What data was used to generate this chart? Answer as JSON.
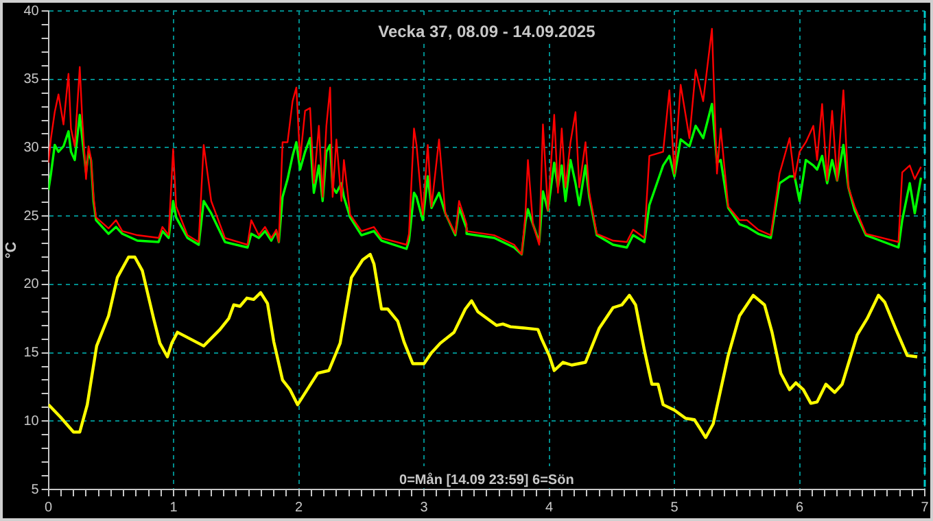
{
  "chart_data": {
    "type": "line",
    "title": "Vecka 37, 08.09 - 14.09.2025",
    "ylabel": "°C",
    "annotations": [
      "0=Mån [14.09 23:59] 6=Sön"
    ],
    "xlim": [
      0,
      7
    ],
    "ylim": [
      5,
      40
    ],
    "xticks": [
      0,
      {
        "value": 0.1,
        "label": null
      },
      {
        "value": 0.2,
        "label": null
      },
      {
        "value": 0.3,
        "label": null
      },
      {
        "value": 0.4,
        "label": null
      },
      {
        "value": 0.5,
        "label": null
      },
      {
        "value": 0.6,
        "label": null
      },
      {
        "value": 0.7,
        "label": null
      },
      {
        "value": 0.8,
        "label": null
      },
      {
        "value": 0.9,
        "label": null
      },
      1,
      {
        "value": 1.1,
        "label": null
      },
      {
        "value": 1.2,
        "label": null
      },
      {
        "value": 1.3,
        "label": null
      },
      {
        "value": 1.4,
        "label": null
      },
      {
        "value": 1.5,
        "label": null
      },
      {
        "value": 1.6,
        "label": null
      },
      {
        "value": 1.7,
        "label": null
      },
      {
        "value": 1.8,
        "label": null
      },
      {
        "value": 1.9,
        "label": null
      },
      2,
      {
        "value": 2.1,
        "label": null
      },
      {
        "value": 2.2,
        "label": null
      },
      {
        "value": 2.3,
        "label": null
      },
      {
        "value": 2.4,
        "label": null
      },
      {
        "value": 2.5,
        "label": null
      },
      {
        "value": 2.6,
        "label": null
      },
      {
        "value": 2.7,
        "label": null
      },
      {
        "value": 2.8,
        "label": null
      },
      {
        "value": 2.9,
        "label": null
      },
      3,
      {
        "value": 3.1,
        "label": null
      },
      {
        "value": 3.2,
        "label": null
      },
      {
        "value": 3.3,
        "label": null
      },
      {
        "value": 3.4,
        "label": null
      },
      {
        "value": 3.5,
        "label": null
      },
      {
        "value": 3.6,
        "label": null
      },
      {
        "value": 3.7,
        "label": null
      },
      {
        "value": 3.8,
        "label": null
      },
      {
        "value": 3.9,
        "label": null
      },
      4,
      {
        "value": 4.1,
        "label": null
      },
      {
        "value": 4.2,
        "label": null
      },
      {
        "value": 4.3,
        "label": null
      },
      {
        "value": 4.4,
        "label": null
      },
      {
        "value": 4.5,
        "label": null
      },
      {
        "value": 4.6,
        "label": null
      },
      {
        "value": 4.7,
        "label": null
      },
      {
        "value": 4.8,
        "label": null
      },
      {
        "value": 4.9,
        "label": null
      },
      5,
      {
        "value": 5.1,
        "label": null
      },
      {
        "value": 5.2,
        "label": null
      },
      {
        "value": 5.3,
        "label": null
      },
      {
        "value": 5.4,
        "label": null
      },
      {
        "value": 5.5,
        "label": null
      },
      {
        "value": 5.6,
        "label": null
      },
      {
        "value": 5.7,
        "label": null
      },
      {
        "value": 5.8,
        "label": null
      },
      {
        "value": 5.9,
        "label": null
      },
      6,
      {
        "value": 6.1,
        "label": null
      },
      {
        "value": 6.2,
        "label": null
      },
      {
        "value": 6.3,
        "label": null
      },
      {
        "value": 6.4,
        "label": null
      },
      {
        "value": 6.5,
        "label": null
      },
      {
        "value": 6.6,
        "label": null
      },
      {
        "value": 6.7,
        "label": null
      },
      {
        "value": 6.8,
        "label": null
      },
      {
        "value": 6.9,
        "label": null
      },
      7
    ],
    "yticks": [
      5,
      {
        "value": 6,
        "label": null
      },
      {
        "value": 7,
        "label": null
      },
      {
        "value": 8,
        "label": null
      },
      {
        "value": 9,
        "label": null
      },
      10,
      {
        "value": 11,
        "label": null
      },
      {
        "value": 12,
        "label": null
      },
      {
        "value": 13,
        "label": null
      },
      {
        "value": 14,
        "label": null
      },
      15,
      {
        "value": 16,
        "label": null
      },
      {
        "value": 17,
        "label": null
      },
      {
        "value": 18,
        "label": null
      },
      {
        "value": 19,
        "label": null
      },
      20,
      {
        "value": 21,
        "label": null
      },
      {
        "value": 22,
        "label": null
      },
      {
        "value": 23,
        "label": null
      },
      {
        "value": 24,
        "label": null
      },
      25,
      {
        "value": 26,
        "label": null
      },
      {
        "value": 27,
        "label": null
      },
      {
        "value": 28,
        "label": null
      },
      {
        "value": 29,
        "label": null
      },
      30,
      {
        "value": 31,
        "label": null
      },
      {
        "value": 32,
        "label": null
      },
      {
        "value": 33,
        "label": null
      },
      {
        "value": 34,
        "label": null
      },
      35,
      {
        "value": 36,
        "label": null
      },
      {
        "value": 37,
        "label": null
      },
      {
        "value": 38,
        "label": null
      },
      {
        "value": 39,
        "label": null
      },
      40
    ],
    "grid": true,
    "legend": false,
    "marker": "none",
    "line_style": "solid",
    "ref_lines": [
      {
        "axis": "x",
        "value": 7,
        "color": "#00c8c8",
        "line_style": "dashed"
      }
    ],
    "series": [
      {
        "color": "#ff0000",
        "x": [
          0,
          0.02,
          0.05,
          0.08,
          0.12,
          0.16,
          0.18,
          0.21,
          0.25,
          0.27,
          0.3,
          0.32,
          0.34,
          0.36,
          0.38,
          0.48,
          0.54,
          0.59,
          0.71,
          0.88,
          0.91,
          0.96,
          0.996,
          1.02,
          1.11,
          1.2,
          1.24,
          1.3,
          1.41,
          1.59,
          1.62,
          1.68,
          1.73,
          1.78,
          1.82,
          1.84,
          1.87,
          1.91,
          1.95,
          1.98,
          2.01,
          2.05,
          2.09,
          2.12,
          2.16,
          2.19,
          2.22,
          2.25,
          2.27,
          2.3,
          2.34,
          2.36,
          2.41,
          2.5,
          2.6,
          2.66,
          2.86,
          2.88,
          2.92,
          2.94,
          2.99,
          3.03,
          3.06,
          3.12,
          3.17,
          3.25,
          3.28,
          3.34,
          3.34,
          3.56,
          3.72,
          3.78,
          3.81,
          3.83,
          3.87,
          3.92,
          3.95,
          3.99,
          4.04,
          4.07,
          4.1,
          4.13,
          4.17,
          4.21,
          4.24,
          4.29,
          4.32,
          4.38,
          4.51,
          4.62,
          4.67,
          4.76,
          4.8,
          4.91,
          4.96,
          5.0,
          5.05,
          5.12,
          5.17,
          5.23,
          5.3,
          5.34,
          5.37,
          5.43,
          5.52,
          5.58,
          5.67,
          5.77,
          5.84,
          5.92,
          5.96,
          6.0,
          6.05,
          6.11,
          6.14,
          6.18,
          6.22,
          6.26,
          6.3,
          6.35,
          6.39,
          6.44,
          6.53,
          6.79,
          6.82,
          6.88,
          6.92,
          6.97
        ],
        "values": [
          28.9,
          30.7,
          32.6,
          33.9,
          31.7,
          35.4,
          31.4,
          30.1,
          35.9,
          32.1,
          27.7,
          30.1,
          29.2,
          26.4,
          24.9,
          24.1,
          24.7,
          23.9,
          23.6,
          23.4,
          24.2,
          23.6,
          29.9,
          25.7,
          23.6,
          23.1,
          30.2,
          26.1,
          23.4,
          22.9,
          24.7,
          23.6,
          24.2,
          23.4,
          24.0,
          23.1,
          30.4,
          30.4,
          33.4,
          34.4,
          29.1,
          32.7,
          32.9,
          27.4,
          31.6,
          26.4,
          31.6,
          34.4,
          26.4,
          30.6,
          26.1,
          29.1,
          25.1,
          23.9,
          24.2,
          23.4,
          22.9,
          23.7,
          31.4,
          30.2,
          25.1,
          30.2,
          25.7,
          30.6,
          25.2,
          23.7,
          26.1,
          24.4,
          23.9,
          23.6,
          22.9,
          22.2,
          25.1,
          29.1,
          24.4,
          22.9,
          31.7,
          25.4,
          32.4,
          26.7,
          31.4,
          27.1,
          30.4,
          32.6,
          27.1,
          30.4,
          26.7,
          23.7,
          23.2,
          23.1,
          24.0,
          23.4,
          29.4,
          29.7,
          34.2,
          28.1,
          34.6,
          30.7,
          35.7,
          33.4,
          38.7,
          28.1,
          31.4,
          25.7,
          24.7,
          24.7,
          24.0,
          23.6,
          28.1,
          30.7,
          27.7,
          29.7,
          30.4,
          31.6,
          29.1,
          33.2,
          27.6,
          32.7,
          27.6,
          34.2,
          27.1,
          25.7,
          23.7,
          23.1,
          28.2,
          28.7,
          27.7,
          28.6
        ]
      },
      {
        "color": "#00ff00",
        "x": [
          0,
          0.02,
          0.05,
          0.08,
          0.12,
          0.16,
          0.18,
          0.21,
          0.25,
          0.27,
          0.3,
          0.32,
          0.34,
          0.36,
          0.38,
          0.48,
          0.54,
          0.59,
          0.71,
          0.88,
          0.91,
          0.96,
          0.996,
          1.02,
          1.11,
          1.2,
          1.24,
          1.3,
          1.41,
          1.59,
          1.62,
          1.68,
          1.73,
          1.78,
          1.82,
          1.84,
          1.87,
          1.91,
          1.95,
          1.98,
          2.01,
          2.05,
          2.09,
          2.12,
          2.16,
          2.19,
          2.22,
          2.25,
          2.27,
          2.3,
          2.34,
          2.36,
          2.41,
          2.5,
          2.6,
          2.66,
          2.86,
          2.88,
          2.92,
          2.94,
          2.99,
          3.03,
          3.06,
          3.12,
          3.17,
          3.25,
          3.28,
          3.34,
          3.34,
          3.56,
          3.72,
          3.78,
          3.81,
          3.83,
          3.87,
          3.92,
          3.95,
          3.99,
          4.04,
          4.07,
          4.1,
          4.13,
          4.17,
          4.21,
          4.24,
          4.29,
          4.32,
          4.38,
          4.51,
          4.62,
          4.67,
          4.76,
          4.8,
          4.91,
          4.96,
          5.0,
          5.05,
          5.12,
          5.17,
          5.23,
          5.3,
          5.34,
          5.37,
          5.43,
          5.52,
          5.58,
          5.67,
          5.77,
          5.84,
          5.92,
          5.96,
          6.0,
          6.05,
          6.11,
          6.14,
          6.18,
          6.22,
          6.26,
          6.3,
          6.35,
          6.39,
          6.44,
          6.53,
          6.79,
          6.82,
          6.88,
          6.92,
          6.97
        ],
        "values": [
          26.9,
          28.1,
          30.2,
          29.7,
          30.1,
          31.2,
          29.7,
          29.1,
          32.4,
          30.7,
          28.2,
          29.7,
          29.1,
          26.1,
          24.7,
          23.7,
          24.2,
          23.7,
          23.2,
          23.1,
          23.9,
          23.4,
          26.1,
          24.9,
          23.4,
          22.9,
          26.1,
          25.2,
          23.1,
          22.7,
          23.7,
          23.4,
          23.9,
          23.2,
          23.9,
          23.1,
          26.4,
          27.7,
          29.4,
          30.4,
          28.4,
          29.7,
          30.7,
          26.7,
          28.7,
          26.1,
          29.7,
          30.2,
          27.1,
          26.7,
          27.4,
          26.4,
          24.9,
          23.6,
          23.9,
          23.2,
          22.6,
          23.2,
          26.7,
          26.4,
          24.7,
          27.9,
          25.6,
          26.7,
          25.2,
          23.6,
          25.6,
          24.1,
          23.7,
          23.4,
          22.7,
          22.2,
          24.6,
          25.5,
          24.4,
          23.1,
          26.8,
          25.4,
          28.9,
          27.1,
          28.7,
          26.1,
          29.1,
          27.4,
          25.8,
          28.7,
          26.4,
          23.6,
          22.9,
          22.7,
          23.6,
          23.1,
          25.8,
          28.7,
          29.4,
          27.9,
          30.6,
          30.1,
          31.6,
          30.7,
          33.2,
          28.9,
          29.1,
          25.6,
          24.4,
          24.2,
          23.7,
          23.4,
          27.4,
          27.9,
          27.9,
          26.1,
          29.1,
          28.7,
          28.4,
          29.4,
          27.4,
          29.1,
          27.6,
          30.2,
          27.1,
          25.4,
          23.6,
          22.7,
          24.7,
          27.4,
          25.2,
          27.8
        ]
      },
      {
        "color": "#ffff00",
        "x": [
          0,
          0.095,
          0.2,
          0.25,
          0.31,
          0.385,
          0.48,
          0.55,
          0.64,
          0.69,
          0.75,
          0.84,
          0.89,
          0.95,
          0.985,
          1.03,
          1.24,
          1.37,
          1.44,
          1.48,
          1.53,
          1.585,
          1.64,
          1.695,
          1.75,
          1.8,
          1.87,
          1.93,
          1.99,
          2.06,
          2.15,
          2.24,
          2.33,
          2.42,
          2.51,
          2.57,
          2.6,
          2.66,
          2.71,
          2.79,
          2.84,
          2.91,
          3.0,
          3.06,
          3.13,
          3.24,
          3.33,
          3.38,
          3.43,
          3.58,
          3.63,
          3.69,
          3.81,
          3.91,
          3.94,
          4.0,
          4.04,
          4.11,
          4.18,
          4.29,
          4.4,
          4.51,
          4.58,
          4.64,
          4.69,
          4.76,
          4.82,
          4.87,
          4.91,
          5.0,
          5.09,
          5.16,
          5.25,
          5.31,
          5.43,
          5.52,
          5.63,
          5.72,
          5.78,
          5.85,
          5.92,
          5.97,
          6.03,
          6.09,
          6.14,
          6.21,
          6.28,
          6.34,
          6.46,
          6.54,
          6.63,
          6.68,
          6.77,
          6.86,
          6.94
        ],
        "values": [
          11.2,
          10.3,
          9.2,
          9.2,
          11.2,
          15.5,
          17.7,
          20.5,
          22.0,
          22.0,
          21.0,
          17.5,
          15.7,
          14.7,
          15.7,
          16.5,
          15.5,
          16.7,
          17.5,
          18.5,
          18.4,
          19.0,
          18.9,
          19.4,
          18.6,
          15.8,
          13.0,
          12.3,
          11.2,
          12.2,
          13.5,
          13.7,
          15.7,
          20.5,
          21.8,
          22.2,
          21.5,
          18.2,
          18.2,
          17.3,
          15.8,
          14.2,
          14.2,
          15.0,
          15.7,
          16.5,
          18.2,
          18.8,
          18.0,
          17.0,
          17.1,
          16.9,
          16.8,
          16.7,
          16.0,
          14.8,
          13.7,
          14.3,
          14.1,
          14.3,
          16.8,
          18.3,
          18.5,
          19.2,
          18.5,
          15.2,
          12.7,
          12.7,
          11.2,
          10.8,
          10.2,
          10.1,
          8.8,
          9.8,
          14.8,
          17.7,
          19.2,
          18.5,
          16.5,
          13.5,
          12.3,
          12.8,
          12.3,
          11.3,
          11.4,
          12.7,
          12.1,
          12.7,
          16.3,
          17.5,
          19.2,
          18.7,
          16.7,
          14.8,
          14.7
        ]
      }
    ]
  }
}
